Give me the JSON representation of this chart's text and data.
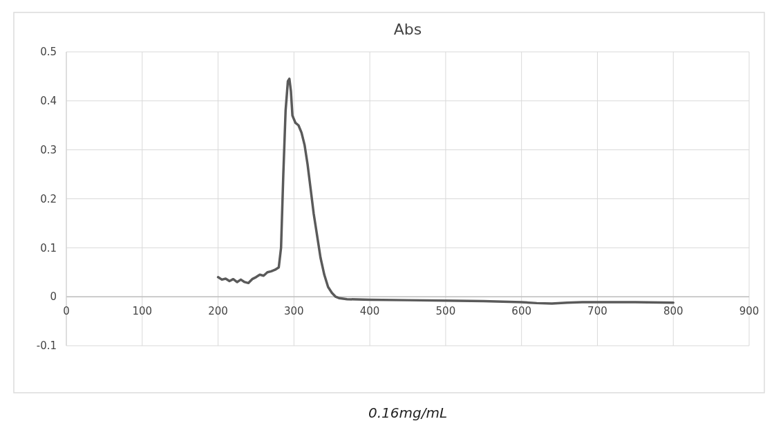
{
  "chart_data": {
    "type": "line",
    "title": "Abs",
    "annotations": [
      "0.16mg/mL"
    ],
    "x": [
      200,
      205,
      210,
      215,
      220,
      225,
      230,
      235,
      240,
      245,
      250,
      255,
      260,
      265,
      270,
      275,
      280,
      283,
      286,
      289,
      292,
      294,
      296,
      298,
      302,
      306,
      310,
      314,
      318,
      322,
      326,
      330,
      335,
      340,
      345,
      350,
      355,
      360,
      370,
      400,
      450,
      500,
      550,
      600,
      620,
      640,
      660,
      680,
      700,
      750,
      800
    ],
    "series": [
      {
        "color": "#5a5a5a",
        "values": [
          0.04,
          0.035,
          0.037,
          0.032,
          0.036,
          0.03,
          0.035,
          0.03,
          0.028,
          0.036,
          0.04,
          0.045,
          0.043,
          0.05,
          0.052,
          0.055,
          0.06,
          0.1,
          0.25,
          0.38,
          0.44,
          0.445,
          0.42,
          0.37,
          0.355,
          0.35,
          0.335,
          0.31,
          0.27,
          0.22,
          0.17,
          0.13,
          0.08,
          0.045,
          0.02,
          0.008,
          0.0,
          -0.003,
          -0.005,
          -0.006,
          -0.007,
          -0.008,
          -0.009,
          -0.011,
          -0.013,
          -0.014,
          -0.012,
          -0.011,
          -0.011,
          -0.011,
          -0.012
        ]
      }
    ],
    "xlim": [
      0,
      900
    ],
    "xticks": [
      0,
      100,
      200,
      300,
      400,
      500,
      600,
      700,
      800,
      900
    ],
    "ylim": [
      -0.1,
      0.5
    ],
    "yticks": [
      -0.1,
      0,
      0.1,
      0.2,
      0.3,
      0.4,
      0.5
    ],
    "grid": true,
    "marker": "none",
    "line_style": "solid"
  }
}
